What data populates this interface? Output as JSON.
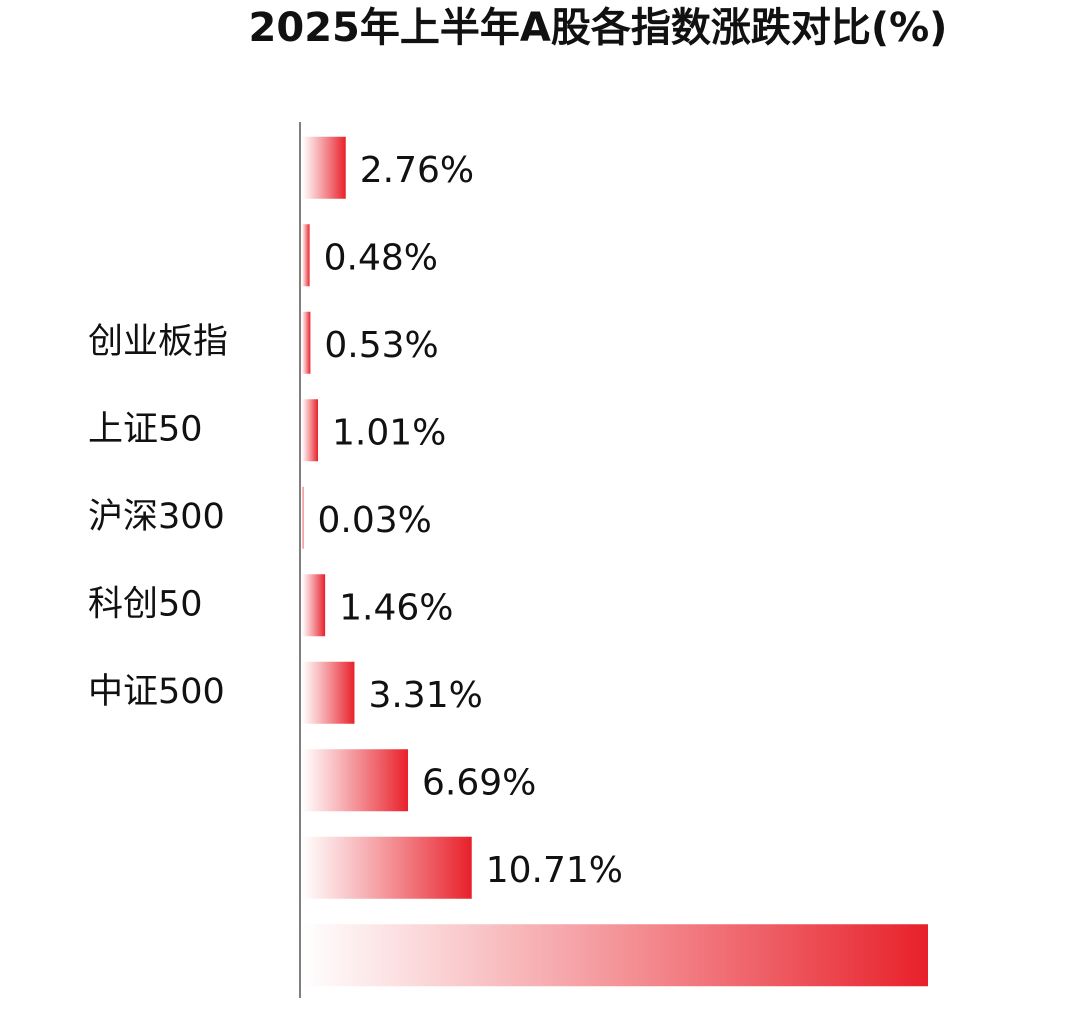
{
  "chart_data": {
    "type": "hbar",
    "title": "2025年上半年A股各指数涨跌对比(%)",
    "categories": [
      null,
      null,
      "创业板指",
      "上证50",
      "沪深300",
      "科创50",
      "中证500",
      null,
      null,
      null
    ],
    "values": [
      2.76,
      0.48,
      0.53,
      1.01,
      0.03,
      1.46,
      3.31,
      6.69,
      10.71,
      39.5
    ],
    "value_labels": [
      "2.76%",
      "0.48%",
      "0.53%",
      "1.01%",
      "0.03%",
      "1.46%",
      "3.31%",
      "6.69%",
      "10.71%",
      null
    ],
    "color": "#e8202a"
  }
}
